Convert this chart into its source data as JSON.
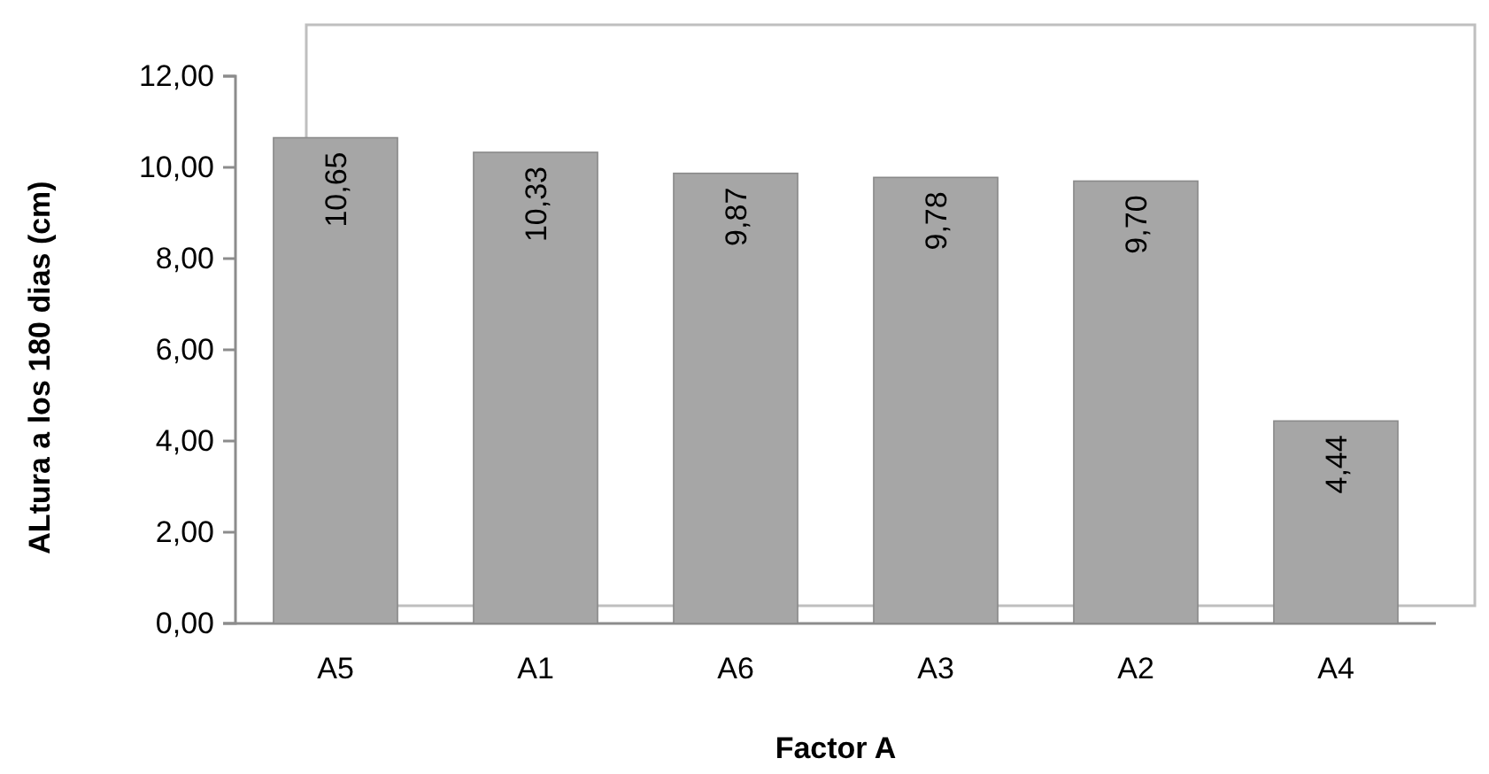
{
  "chart_data": {
    "type": "bar",
    "xlabel": "Factor A",
    "ylabel": "ALtura a los 180 dias (cm)",
    "categories": [
      "A5",
      "A1",
      "A6",
      "A3",
      "A2",
      "A4"
    ],
    "values": [
      10.65,
      10.33,
      9.87,
      9.78,
      9.7,
      4.44
    ],
    "value_labels": [
      "10,65",
      "10,33",
      "9,87",
      "9,78",
      "9,70",
      "4,44"
    ],
    "color": "#a6a6a6",
    "ylim": [
      0,
      12
    ],
    "yticks": [
      {
        "value": 0,
        "label": "0,00"
      },
      {
        "value": 2,
        "label": "2,00"
      },
      {
        "value": 4,
        "label": "4,00"
      },
      {
        "value": 6,
        "label": "6,00"
      },
      {
        "value": 8,
        "label": "8,00"
      },
      {
        "value": 10,
        "label": "10,00"
      },
      {
        "value": 12,
        "label": "12,00"
      }
    ]
  }
}
